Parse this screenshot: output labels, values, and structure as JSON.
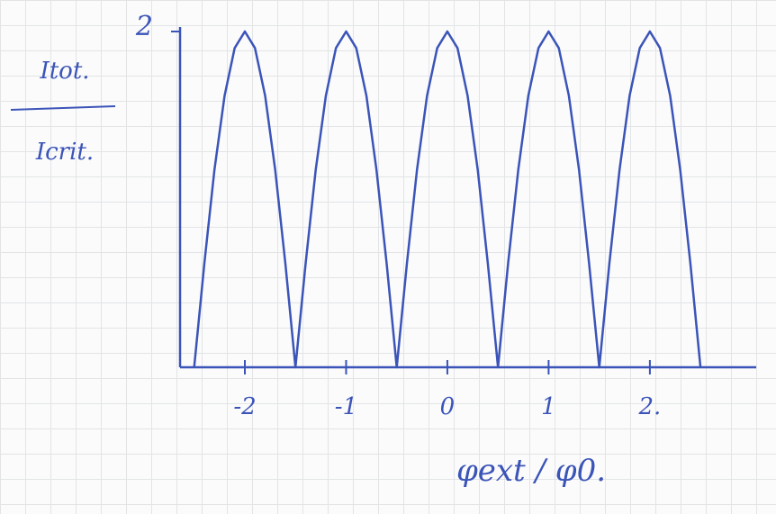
{
  "chart_data": {
    "type": "line",
    "y_label_numerator": "Itot.",
    "y_label_denominator": "Icrit.",
    "x_label": "φext / φ0.",
    "x": [
      -2.5,
      -2.4,
      -2.3,
      -2.2,
      -2.1,
      -2.0,
      -1.9,
      -1.8,
      -1.7,
      -1.6,
      -1.5,
      -1.4,
      -1.3,
      -1.2,
      -1.1,
      -1.0,
      -0.9,
      -0.8,
      -0.7,
      -0.6,
      -0.5,
      -0.4,
      -0.3,
      -0.2,
      -0.1,
      0,
      0.1,
      0.2,
      0.3,
      0.4,
      0.5,
      0.6,
      0.7,
      0.8,
      0.9,
      1.0,
      1.1,
      1.2,
      1.3,
      1.4,
      1.5,
      1.6,
      1.7,
      1.8,
      1.9,
      2.0,
      2.1,
      2.2,
      2.3,
      2.4,
      2.5
    ],
    "series": [
      {
        "color": "#3b54b8",
        "values": [
          0,
          0.618,
          1.176,
          1.618,
          1.902,
          2,
          1.902,
          1.618,
          1.176,
          0.618,
          0,
          0.618,
          1.176,
          1.618,
          1.902,
          2,
          1.902,
          1.618,
          1.176,
          0.618,
          0,
          0.618,
          1.176,
          1.618,
          1.902,
          2,
          1.902,
          1.618,
          1.176,
          0.618,
          0,
          0.618,
          1.176,
          1.618,
          1.902,
          2,
          1.902,
          1.618,
          1.176,
          0.618,
          0,
          0.618,
          1.176,
          1.618,
          1.902,
          2,
          1.902,
          1.618,
          1.176,
          0.618,
          0
        ]
      }
    ],
    "xlim": [
      -2.64,
      3.05
    ],
    "ylim": [
      0,
      2
    ],
    "xticks": [
      -2,
      -1,
      0,
      1,
      {
        "value": 2,
        "label": "2."
      }
    ],
    "yticks": [
      2
    ]
  }
}
